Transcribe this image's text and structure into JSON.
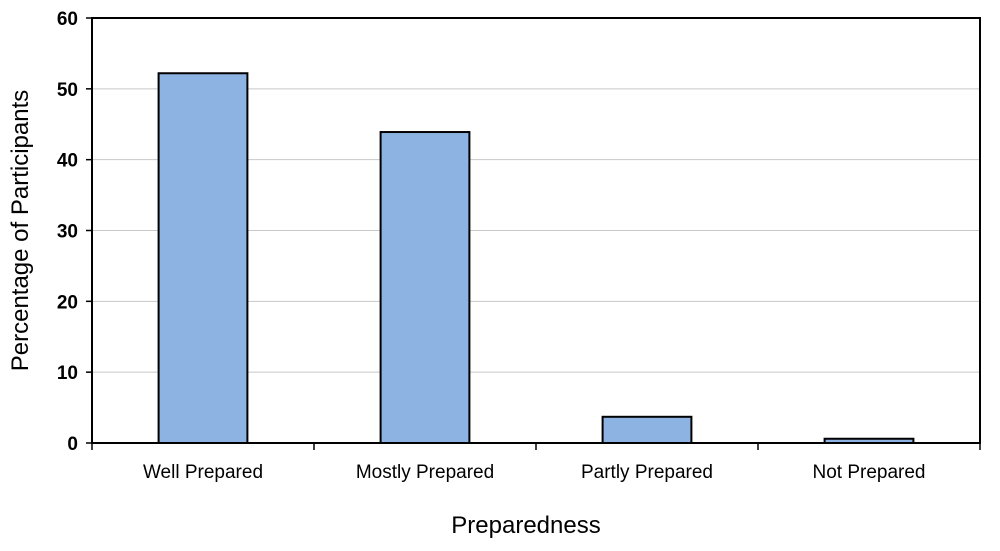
{
  "chart_data": {
    "type": "bar",
    "title": "",
    "xlabel": "Preparedness",
    "ylabel": "Percentage of Participants",
    "categories": [
      "Well Prepared",
      "Mostly Prepared",
      "Partly Prepared",
      "Not Prepared"
    ],
    "values": [
      52.2,
      43.9,
      3.7,
      0.6
    ],
    "ylim": [
      0,
      60
    ],
    "yticks": [
      "0",
      "10",
      "20",
      "30",
      "40",
      "50",
      "60"
    ],
    "grid": true,
    "legend": "none",
    "colors": {
      "bar_fill": "#8DB3E2",
      "bar_stroke": "#000000",
      "grid": "#C8C8C8",
      "frame": "#000000"
    }
  }
}
